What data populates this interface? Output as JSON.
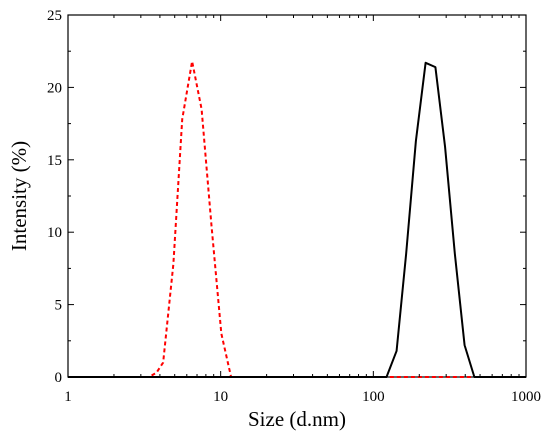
{
  "chart_data": {
    "type": "line",
    "title": "",
    "xlabel": "Size (d.nm)",
    "ylabel": "Intensity (%)",
    "x_scale": "log",
    "xlim": [
      1,
      1000
    ],
    "ylim": [
      0,
      25
    ],
    "grid": false,
    "legend": "none",
    "x_ticks": [
      1,
      10,
      100,
      1000
    ],
    "x_tick_labels": [
      "1",
      "10",
      "100",
      "1000"
    ],
    "y_ticks": [
      0,
      5,
      10,
      15,
      20,
      25
    ],
    "y_tick_labels": [
      "0",
      "5",
      "10",
      "15",
      "20",
      "25"
    ],
    "series": [
      {
        "color": "#ff0000",
        "style": "dashed",
        "x": [
          1,
          3.4,
          3.8,
          4.2,
          4.9,
          5.6,
          6.5,
          7.5,
          8.7,
          10.1,
          11.7,
          1000
        ],
        "y": [
          0,
          0,
          0.3,
          1.0,
          7.8,
          17.8,
          21.8,
          18.5,
          10.5,
          3.0,
          0,
          0
        ]
      },
      {
        "color": "#000000",
        "style": "solid",
        "x": [
          1,
          122,
          142,
          164,
          190,
          220,
          255,
          295,
          342,
          396,
          459,
          1000
        ],
        "y": [
          0,
          0,
          1.8,
          8.5,
          16.3,
          21.7,
          21.4,
          15.9,
          8.5,
          2.2,
          0,
          0
        ]
      }
    ]
  }
}
